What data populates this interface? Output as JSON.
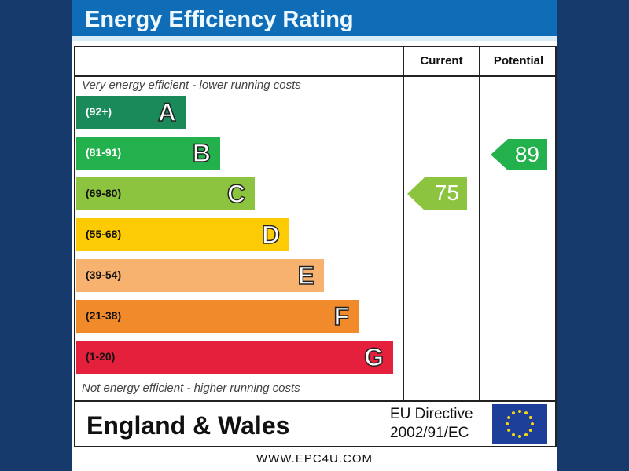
{
  "chart_data": {
    "type": "bar",
    "title": "Energy Efficiency Rating",
    "top_note": "Very energy efficient - lower running costs",
    "bottom_note": "Not energy efficient - higher running costs",
    "columns": [
      "Current",
      "Potential"
    ],
    "bands": [
      {
        "letter": "A",
        "range": "(92+)",
        "color": "#1a8a5a"
      },
      {
        "letter": "B",
        "range": "(81-91)",
        "color": "#22b14c"
      },
      {
        "letter": "C",
        "range": "(69-80)",
        "color": "#8cc43f"
      },
      {
        "letter": "D",
        "range": "(55-68)",
        "color": "#fccb04"
      },
      {
        "letter": "E",
        "range": "(39-54)",
        "color": "#f8b26f"
      },
      {
        "letter": "F",
        "range": "(21-38)",
        "color": "#f08a2a"
      },
      {
        "letter": "G",
        "range": "(1-20)",
        "color": "#e5203d"
      }
    ],
    "current": {
      "value": 75,
      "band": "C",
      "color": "#8cc43f"
    },
    "potential": {
      "value": 89,
      "band": "B",
      "color": "#22b14c"
    }
  },
  "footer": {
    "region": "England & Wales",
    "directive_line1": "EU Directive",
    "directive_line2": "2002/91/EC",
    "website": "WWW.EPC4U.COM"
  }
}
